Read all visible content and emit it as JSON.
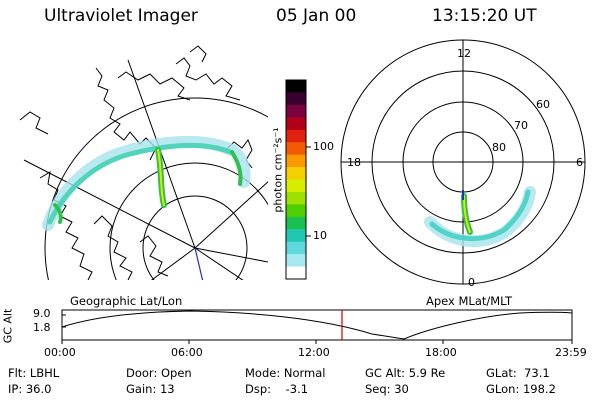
{
  "header": {
    "instrument": "Ultraviolet Imager",
    "date": "05 Jan 00",
    "time": "13:15:20 UT"
  },
  "colorbar": {
    "unit_label": "photon cm⁻²s⁻¹",
    "ticks": [
      "100",
      "10"
    ],
    "colors": [
      "#000000",
      "#3a0030",
      "#7a0040",
      "#b00018",
      "#e02010",
      "#f25a00",
      "#fb9a00",
      "#f5d000",
      "#d8ec00",
      "#9ee000",
      "#50cf00",
      "#18c050",
      "#20c8b0",
      "#60d8e0",
      "#a8e8f0",
      "#ffffff"
    ]
  },
  "geo_panel": {
    "caption": "Geographic Lat/Lon"
  },
  "polar_panel": {
    "caption": "Apex MLat/MLT",
    "mlt_labels": {
      "top": "12",
      "left": "18",
      "right": "6",
      "bottom": "0"
    },
    "mlat_labels": [
      "60",
      "70",
      "80"
    ]
  },
  "timeline": {
    "ylabel": "GC Alt",
    "y_top": "9.0",
    "y_bottom": "1.8",
    "x_ticks": [
      "00:00",
      "06:00",
      "12:00",
      "18:00",
      "23:59"
    ],
    "marker_color": "#cc0000"
  },
  "info": {
    "flt": "Flt: LBHL",
    "ip": "IP: 36.0",
    "door": "Door: Open",
    "gain": "Gain: 13",
    "mode": "Mode: Normal",
    "dsp": "Dsp:    -3.1",
    "gcalt": "GC Alt: 5.9 Re",
    "seq": "Seq: 30",
    "glat": "GLat:  73.1",
    "glon": "GLon: 198.2"
  }
}
